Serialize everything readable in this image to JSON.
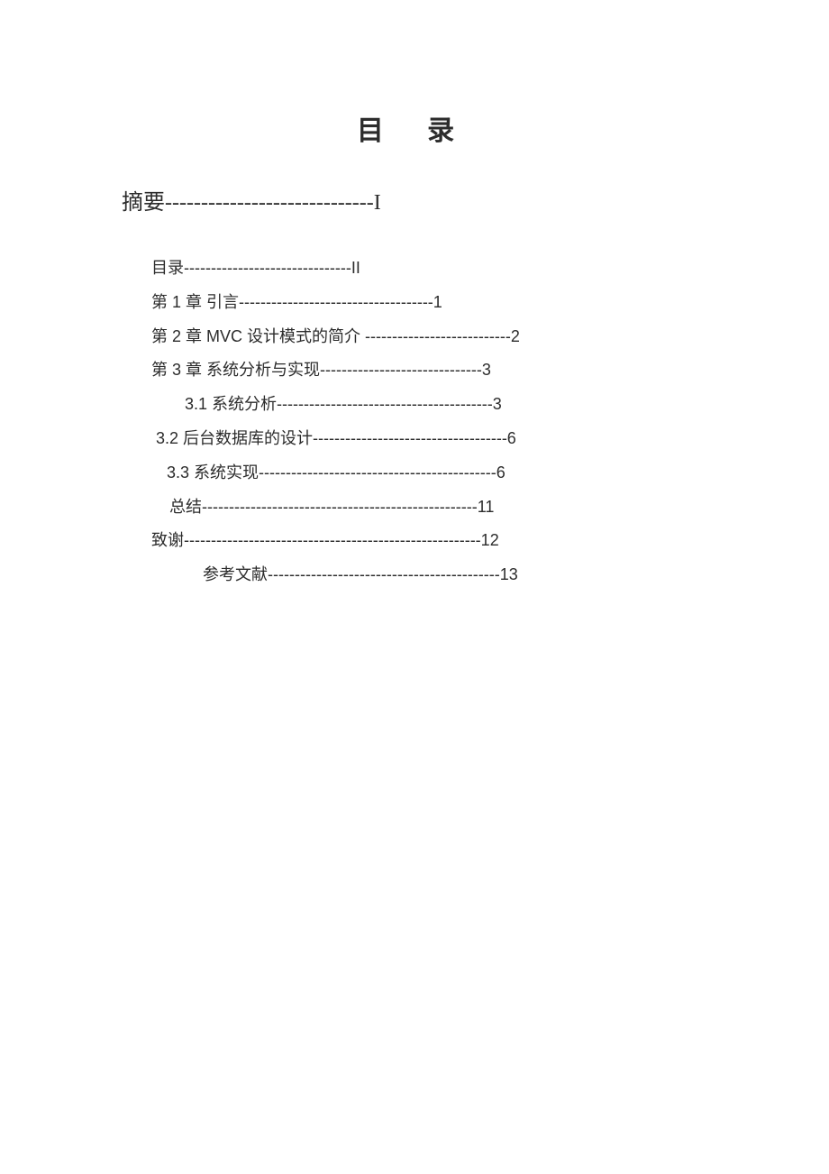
{
  "title": "目 录",
  "heading": "摘要-----------------------------I",
  "entries": [
    {
      "text": "目录-------------------------------II",
      "cls": "toc-line-0"
    },
    {
      "text": "第 1 章 引言------------------------------------1",
      "cls": "toc-line-0"
    },
    {
      "text": "第 2 章 MVC 设计模式的简介  ---------------------------2",
      "cls": "toc-line-0"
    },
    {
      "text": "第 3 章 系统分析与实现------------------------------3",
      "cls": "toc-line-0"
    },
    {
      "text": "3.1 系统分析----------------------------------------3",
      "cls": "toc-line-1"
    },
    {
      "text": "3.2 后台数据库的设计------------------------------------6",
      "cls": "toc-line-2"
    },
    {
      "text": "3.3 系统实现--------------------------------------------6",
      "cls": "toc-line-2b"
    },
    {
      "text": "总结---------------------------------------------------11",
      "cls": "toc-line-3"
    },
    {
      "text": "致谢-------------------------------------------------------12",
      "cls": "toc-line-4"
    },
    {
      "text": "参考文献-------------------------------------------13",
      "cls": "toc-line-5"
    }
  ],
  "colors": {
    "background": "#ffffff",
    "text": "#2c2c2c"
  },
  "typography": {
    "title_fontsize": 30,
    "heading_fontsize": 24,
    "body_fontsize": 18,
    "title_font": "SimHei",
    "heading_font": "SimSun",
    "body_font": "SimHei"
  }
}
